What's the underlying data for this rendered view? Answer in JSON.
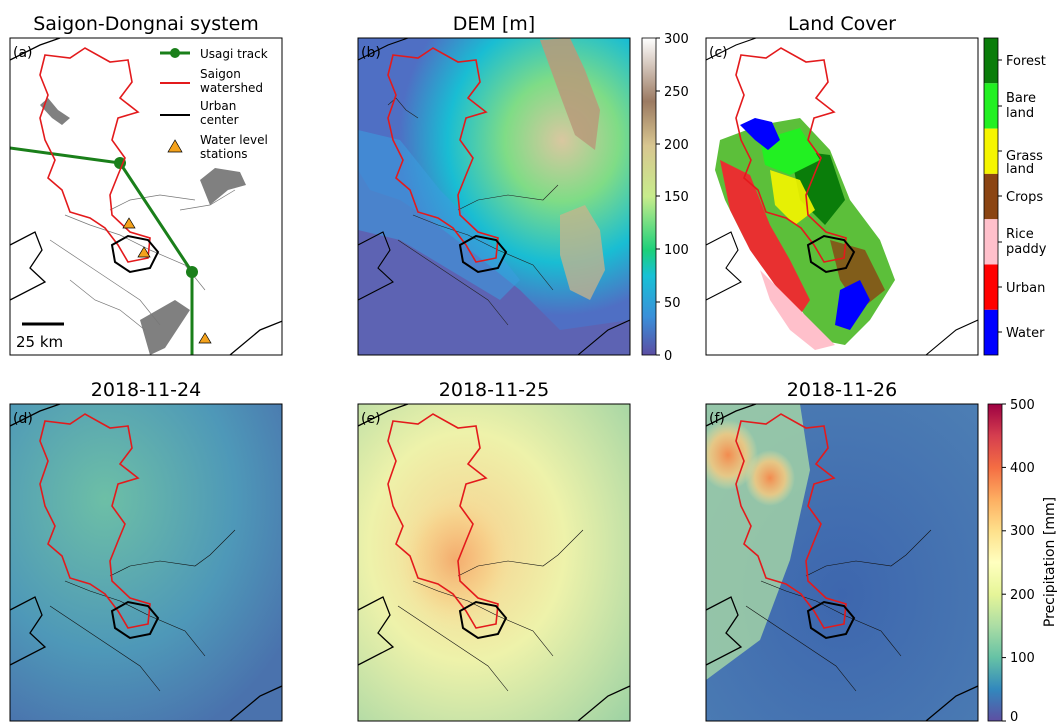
{
  "panels": {
    "a": {
      "title": "Saigon-Dongnai system",
      "tag": "(a)",
      "scalebar": "25 km",
      "legend": [
        "Usagi track",
        "Saigon watershed",
        "Urban center",
        "Water level stations"
      ],
      "legend_colors": {
        "track": "#1a7f1a",
        "watershed": "#e31a1c",
        "urban": "#000000",
        "station": "#f4a21c"
      }
    },
    "b": {
      "title": "DEM [m]",
      "tag": "(b)"
    },
    "c": {
      "title": "Land Cover",
      "tag": "(c)"
    },
    "d": {
      "title": "2018-11-24",
      "tag": "(d)"
    },
    "e": {
      "title": "2018-11-25",
      "tag": "(e)"
    },
    "f": {
      "title": "2018-11-26",
      "tag": "(f)"
    }
  },
  "dem_colorbar": {
    "ticks": [
      "0",
      "50",
      "100",
      "150",
      "200",
      "250",
      "300"
    ],
    "range": [
      0,
      300
    ],
    "colormap": "terrain"
  },
  "landcover_legend": {
    "classes": [
      "Forest",
      "Bare land",
      "Grass land",
      "Crops",
      "Rice paddy",
      "Urban",
      "Water"
    ],
    "colors": [
      "#0a7d0a",
      "#22f022",
      "#f5f500",
      "#8b4513",
      "#ffc0cb",
      "#ff0000",
      "#0000ff"
    ]
  },
  "precip_colorbar": {
    "label": "Precipitation [mm]",
    "ticks": [
      "0",
      "100",
      "200",
      "300",
      "400",
      "500"
    ],
    "range": [
      0,
      500
    ],
    "colormap": "Spectral_r"
  }
}
